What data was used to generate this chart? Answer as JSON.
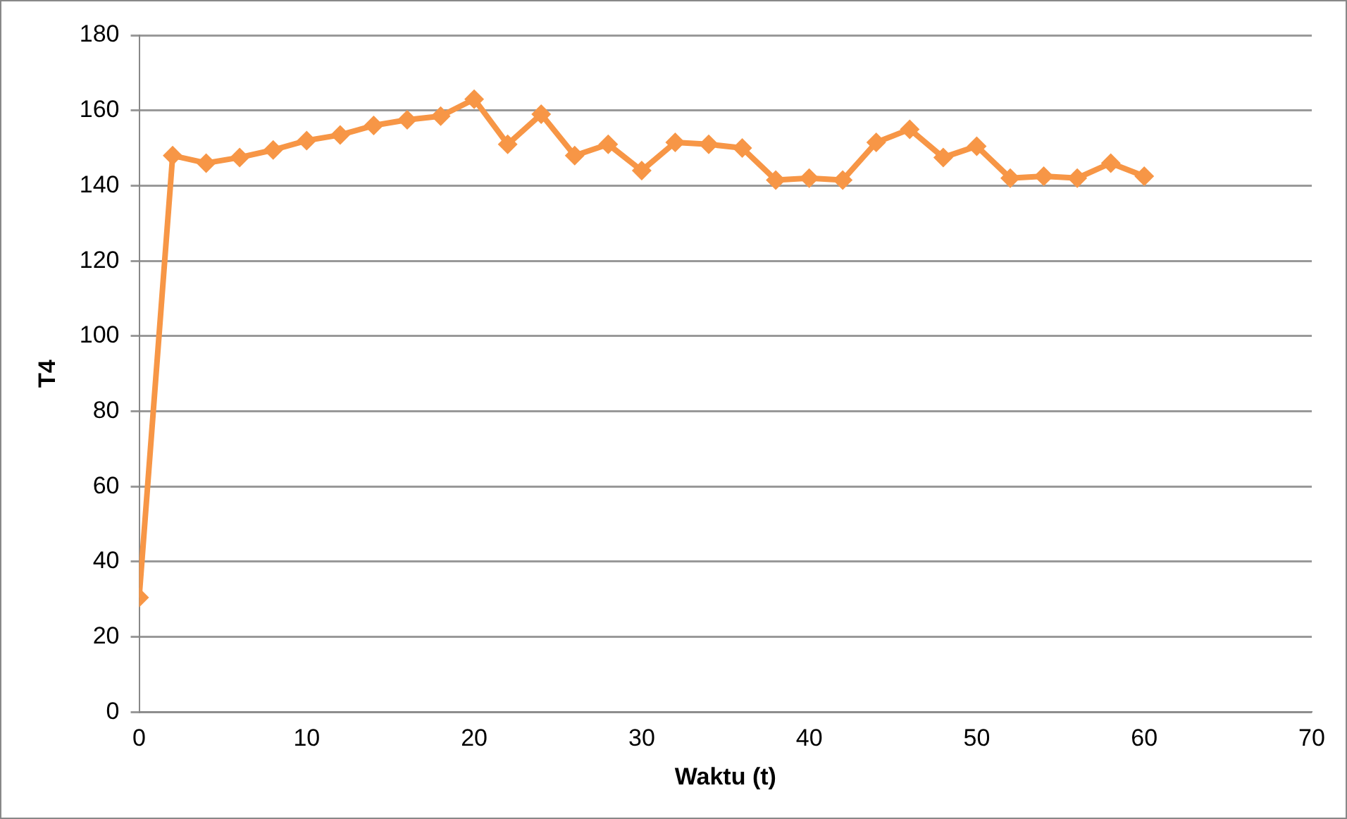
{
  "chart_data": {
    "type": "line",
    "xlabel": "Waktu (t)",
    "ylabel": "T4",
    "x": [
      0,
      2,
      4,
      6,
      8,
      10,
      12,
      14,
      16,
      18,
      20,
      22,
      24,
      26,
      28,
      30,
      32,
      34,
      36,
      38,
      40,
      42,
      44,
      46,
      48,
      50,
      52,
      54,
      56,
      58,
      60
    ],
    "series": [
      {
        "color": "#f79646",
        "values": [
          30.5,
          148,
          146,
          147.5,
          149.5,
          152,
          153.5,
          156,
          157.5,
          158.5,
          163,
          151,
          159,
          148,
          151,
          144,
          151.5,
          151,
          150,
          141.5,
          142,
          141.5,
          151.5,
          155,
          147.5,
          150.5,
          142,
          142.5,
          142,
          146,
          142.5
        ]
      }
    ],
    "xlim": [
      0,
      70
    ],
    "xticks": [
      0,
      10,
      20,
      30,
      40,
      50,
      60,
      70
    ],
    "ylim": [
      0,
      180
    ],
    "yticks": [
      0,
      20,
      40,
      60,
      80,
      100,
      120,
      140,
      160,
      180
    ],
    "grid": "y",
    "legend": false,
    "marker": "diamond",
    "line_style": "solid"
  }
}
